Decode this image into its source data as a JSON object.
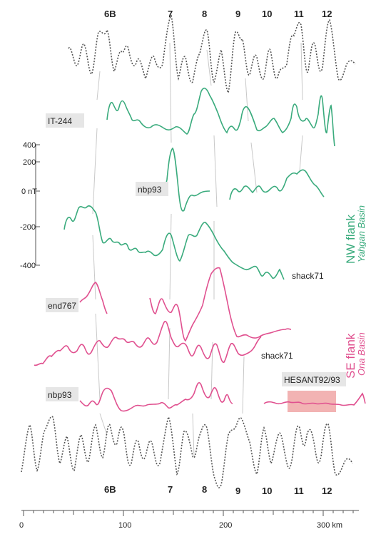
{
  "colors": {
    "green": "#3aab7d",
    "pink": "#e0508f",
    "model": "#555555",
    "highlight": "#f0a6a6",
    "correlation": "#c8c8c8"
  },
  "anomalies_top": [
    "6B",
    "7",
    "8",
    "9",
    "10",
    "11",
    "12"
  ],
  "anomalies_bottom": [
    "6B",
    "7",
    "8",
    "9",
    "10",
    "11",
    "12"
  ],
  "profiles": {
    "it244": "IT-244",
    "nbp93_nw": "nbp93",
    "shack71_nw": "shack71",
    "end767": "end767",
    "shack71_se": "shack71",
    "nbp93_se": "nbp93",
    "hesant": "HESANT92/93"
  },
  "nT_axis": {
    "ticks": [
      "400",
      "200",
      "0 nT",
      "-200",
      "-400"
    ]
  },
  "distance_axis": {
    "ticks": [
      "0",
      "100",
      "200",
      "300 km"
    ]
  },
  "flanks": {
    "nw_title": "NW flank",
    "nw_subtitle": "Yahgan Basin",
    "se_title": "SE flank",
    "se_subtitle": "Ona Basin"
  }
}
